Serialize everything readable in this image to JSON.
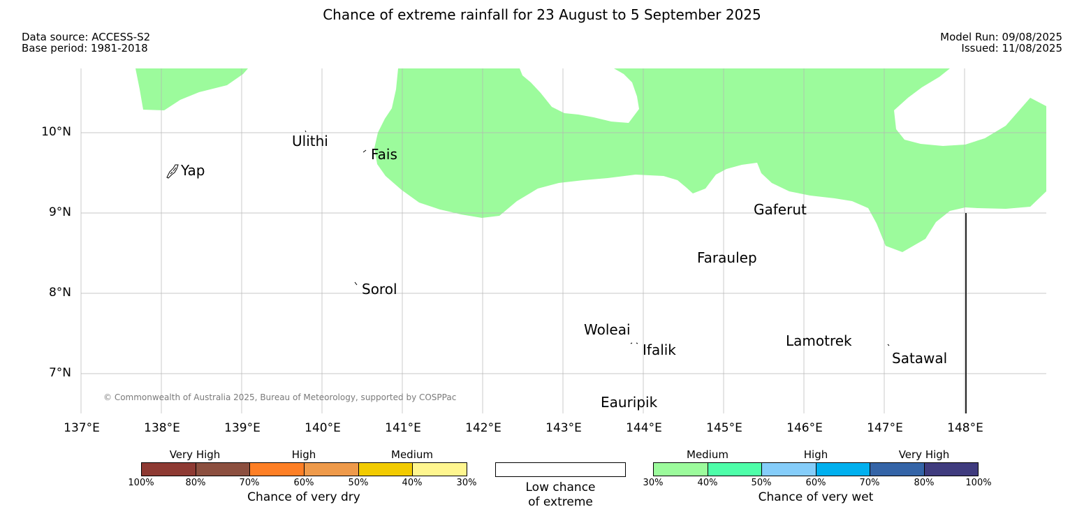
{
  "title": "Chance of extreme rainfall for 23 August to 5 September 2025",
  "data_source": "Data source: ACCESS-S2",
  "base_period": "Base period: 1981-2018",
  "model_run": "Model Run: 09/08/2025",
  "issued": "Issued: 11/08/2025",
  "copyright": "© Commonwealth of Australia 2025, Bureau of Meteorology, supported by COSPPac",
  "axes": {
    "lat_ticks": [
      "10°N",
      "9°N",
      "8°N",
      "7°N"
    ],
    "lon_ticks": [
      "137°E",
      "138°E",
      "139°E",
      "140°E",
      "141°E",
      "142°E",
      "143°E",
      "144°E",
      "145°E",
      "146°E",
      "147°E",
      "148°E"
    ],
    "grid": true
  },
  "map": {
    "lon_range": [
      137,
      149
    ],
    "lat_range": [
      6.5,
      10.8
    ],
    "shaded_region_color": "#9cfb9c",
    "shaded_region_category": "Medium (30%-40%) chance of very wet",
    "unshaded_category": "Low chance of extreme"
  },
  "places": [
    {
      "name": "Yap",
      "lon": 138.15,
      "lat": 9.52
    },
    {
      "name": "Ulithi",
      "lon": 139.75,
      "lat": 9.95
    },
    {
      "name": "Fais",
      "lon": 140.52,
      "lat": 9.75
    },
    {
      "name": "Sorol",
      "lon": 140.4,
      "lat": 8.13
    },
    {
      "name": "Gaferut",
      "lon": 145.4,
      "lat": 9.0
    },
    {
      "name": "Faraulep",
      "lon": 144.5,
      "lat": 8.45
    },
    {
      "name": "Woleai",
      "lon": 143.9,
      "lat": 7.35
    },
    {
      "name": "Ifalik",
      "lon": 144.45,
      "lat": 7.25
    },
    {
      "name": "Lamotrek",
      "lon": 146.35,
      "lat": 7.48
    },
    {
      "name": "Satawal",
      "lon": 147.03,
      "lat": 7.35
    },
    {
      "name": "Eauripik",
      "lon": 143.05,
      "lat": 6.69
    }
  ],
  "legend": {
    "dry": {
      "groups": [
        "Very High",
        "High",
        "Medium"
      ],
      "ticks": [
        "100%",
        "80%",
        "70%",
        "60%",
        "50%",
        "40%",
        "30%"
      ],
      "colors": [
        "#8e3a33",
        "#8c4f3f",
        "#fe7f25",
        "#ef9a4a",
        "#f2cb00",
        "#fff68f"
      ],
      "label": "Chance of very dry"
    },
    "low": {
      "line1": "Low chance",
      "line2": "of extreme"
    },
    "wet": {
      "groups": [
        "Medium",
        "High",
        "Very High"
      ],
      "ticks": [
        "30%",
        "40%",
        "50%",
        "60%",
        "70%",
        "80%",
        "100%"
      ],
      "colors": [
        "#9cfb9c",
        "#4efea9",
        "#85cdfa",
        "#00b0ef",
        "#3464a7",
        "#3f3b7e"
      ],
      "label": "Chance of very wet"
    }
  }
}
